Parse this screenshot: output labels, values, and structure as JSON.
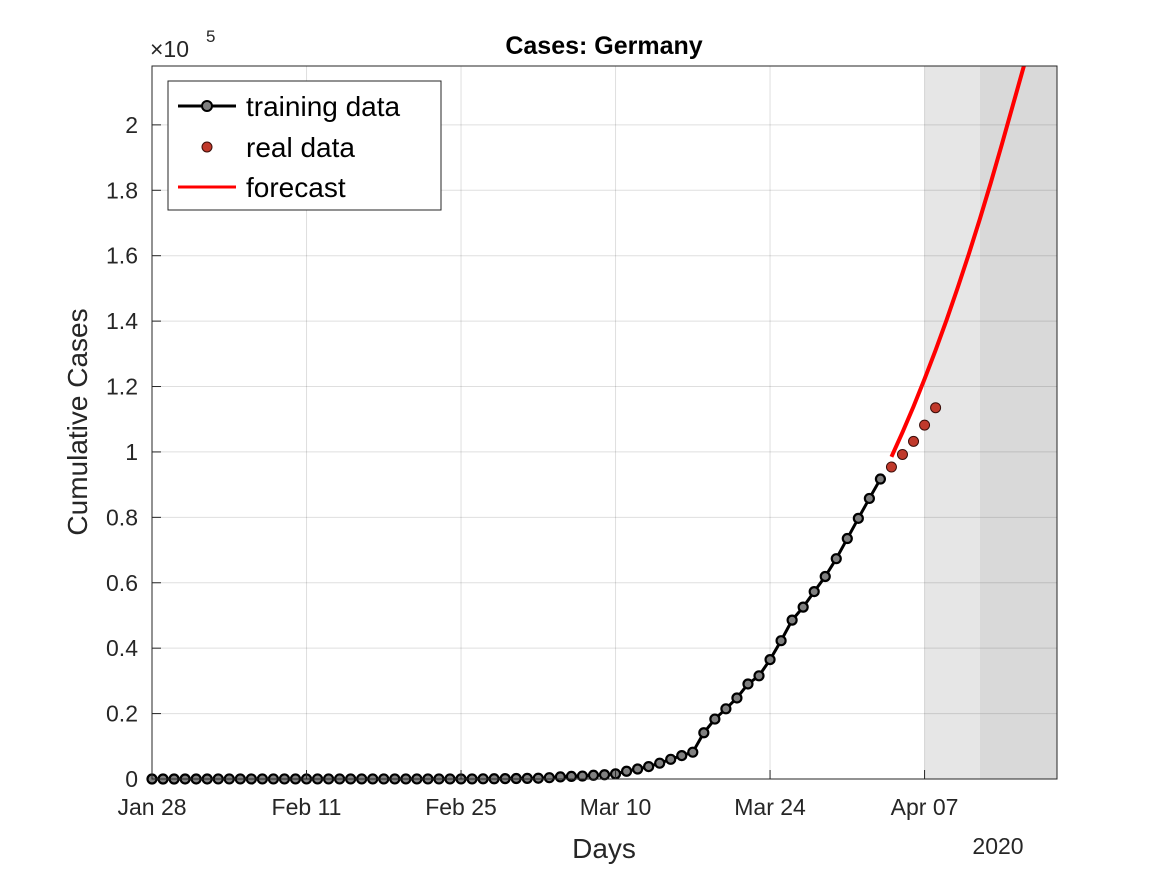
{
  "chart_data": {
    "type": "line",
    "title": "Cases: Germany",
    "xlabel": "Days",
    "ylabel": "Cumulative Cases",
    "y_exponent_label": "×10",
    "y_exponent_power": "5",
    "x_year_label": "2020",
    "xlim": [
      "2020-01-28",
      "2020-04-19"
    ],
    "ylim": [
      0,
      218000
    ],
    "x_ticks": [
      {
        "date": "2020-01-28",
        "label": "Jan 28"
      },
      {
        "date": "2020-02-11",
        "label": "Feb 11"
      },
      {
        "date": "2020-02-25",
        "label": "Feb 25"
      },
      {
        "date": "2020-03-10",
        "label": "Mar 10"
      },
      {
        "date": "2020-03-24",
        "label": "Mar 24"
      },
      {
        "date": "2020-04-07",
        "label": "Apr 07"
      }
    ],
    "y_ticks": [
      {
        "value": 0,
        "label": "0"
      },
      {
        "value": 20000,
        "label": "0.2"
      },
      {
        "value": 40000,
        "label": "0.4"
      },
      {
        "value": 60000,
        "label": "0.6"
      },
      {
        "value": 80000,
        "label": "0.8"
      },
      {
        "value": 100000,
        "label": "1"
      },
      {
        "value": 120000,
        "label": "1.2"
      },
      {
        "value": 140000,
        "label": "1.4"
      },
      {
        "value": 160000,
        "label": "1.6"
      },
      {
        "value": 180000,
        "label": "1.8"
      },
      {
        "value": 200000,
        "label": "2"
      }
    ],
    "grid": true,
    "legend_position": "top-left",
    "shaded_regions": [
      {
        "start": "2020-04-07",
        "end": "2020-04-12",
        "color": "#e6e6e6"
      },
      {
        "start": "2020-04-12",
        "end": "2020-04-19",
        "color": "#d9d9d9"
      }
    ],
    "series": [
      {
        "name": "training data",
        "style": "line-marker",
        "color": "#000000",
        "marker_color": "#808080",
        "x_start": "2020-01-28",
        "values": [
          4,
          4,
          5,
          7,
          8,
          10,
          12,
          12,
          12,
          13,
          14,
          14,
          14,
          16,
          16,
          16,
          16,
          16,
          16,
          16,
          16,
          16,
          16,
          16,
          16,
          16,
          16,
          18,
          21,
          26,
          53,
          66,
          117,
          150,
          188,
          240,
          400,
          639,
          795,
          902,
          1139,
          1296,
          1567,
          2369,
          3062,
          3795,
          4838,
          6012,
          7156,
          8198,
          14138,
          18323,
          21463,
          24774,
          29056,
          31554,
          36508,
          42288,
          48582,
          52547,
          57298,
          61913,
          67366,
          73522,
          79696,
          85778,
          91714
        ]
      },
      {
        "name": "real data",
        "style": "marker",
        "color": "#c0392b",
        "points": [
          {
            "x": "2020-04-04",
            "y": 95391
          },
          {
            "x": "2020-04-05",
            "y": 99225
          },
          {
            "x": "2020-04-06",
            "y": 103228
          },
          {
            "x": "2020-04-07",
            "y": 108202
          },
          {
            "x": "2020-04-08",
            "y": 113525
          }
        ]
      },
      {
        "name": "forecast",
        "style": "line",
        "color": "#ff0000",
        "x_start": "2020-04-04",
        "values": [
          98500,
          106000,
          113900,
          122300,
          131100,
          140400,
          150200,
          160400,
          171100,
          182300,
          194000,
          206000,
          218000
        ]
      }
    ]
  }
}
